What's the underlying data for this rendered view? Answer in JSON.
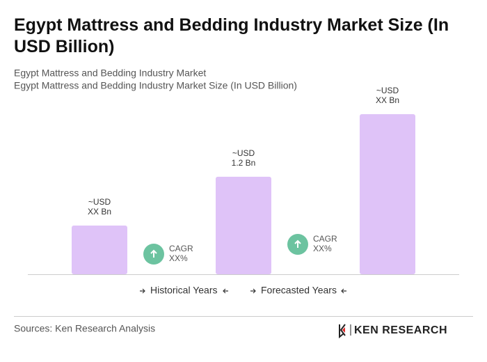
{
  "chart_data": {
    "type": "bar",
    "title": [
      "Egypt Mattress and Bedding Industry Market Size (In",
      "USD Billion)"
    ],
    "subtitle": [
      "Egypt Mattress and Bedding Industry Market",
      "Egypt Mattress and Bedding Industry Market Size (In USD Billion)"
    ],
    "values": [
      0.6,
      1.2,
      1.97
    ],
    "value_labels": [
      [
        "~USD",
        "XX Bn"
      ],
      [
        "~USD",
        "1.2 Bn"
      ],
      [
        "~USD",
        "XX Bn"
      ]
    ],
    "color": "#dfc3f8",
    "annotations": [
      [
        "CAGR",
        "XX%"
      ],
      [
        "CAGR",
        "XX%"
      ]
    ],
    "annotation_color": "#6cc3a0",
    "legend": [
      "Historical Years",
      "Forecasted Years"
    ],
    "source": "Sources: Ken Research Analysis",
    "logo": "KEN RESEARCH"
  }
}
